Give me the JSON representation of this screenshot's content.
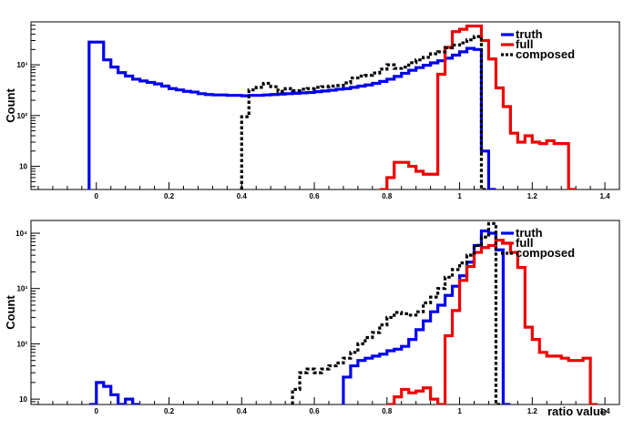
{
  "chart_data": [
    {
      "type": "step-histogram",
      "ylabel": "Count",
      "xlabel": "",
      "xlim": [
        -0.18,
        1.44
      ],
      "ylim": [
        3.5,
        7000
      ],
      "log_y": true,
      "x_ticks": [
        "0",
        "0.2",
        "0.4",
        "0.6",
        "0.8",
        "1",
        "1.2",
        "1.4"
      ],
      "y_ticks": [
        {
          "value": 10,
          "label": "10"
        },
        {
          "value": 100,
          "label": "10²"
        },
        {
          "value": 1000,
          "label": "10³"
        }
      ],
      "legend": {
        "position": "top-right"
      },
      "bin_width": 0.02,
      "series": [
        {
          "name": "truth",
          "color": "#0000ee",
          "style": "solid",
          "start": -0.02,
          "values": [
            2800,
            2800,
            1250,
            900,
            700,
            600,
            520,
            480,
            450,
            420,
            380,
            340,
            320,
            300,
            290,
            270,
            260,
            255,
            255,
            250,
            250,
            245,
            250,
            250,
            255,
            260,
            265,
            270,
            275,
            280,
            285,
            295,
            305,
            315,
            330,
            340,
            360,
            380,
            400,
            430,
            470,
            520,
            590,
            680,
            780,
            880,
            980,
            1090,
            1200,
            1350,
            1550,
            1800,
            2100,
            2000,
            20,
            2.5
          ]
        },
        {
          "name": "full",
          "color": "#ee0000",
          "style": "solid",
          "start": 0.78,
          "values": [
            2.5,
            6,
            12,
            12,
            10,
            8,
            7,
            7,
            650,
            2200,
            4500,
            5000,
            5800,
            5800,
            3000,
            1300,
            350,
            150,
            45,
            30,
            40,
            30,
            28,
            32,
            28,
            28,
            2.5
          ]
        },
        {
          "name": "composed",
          "color": "#000000",
          "style": "dashed",
          "start": 0.4,
          "values": [
            95,
            320,
            360,
            430,
            370,
            300,
            340,
            310,
            330,
            340,
            360,
            370,
            380,
            390,
            440,
            550,
            600,
            620,
            690,
            820,
            1000,
            850,
            900,
            1100,
            1250,
            1400,
            1650,
            1800,
            2150,
            2450,
            2700,
            3100,
            3600,
            2.5
          ]
        }
      ]
    },
    {
      "type": "step-histogram",
      "ylabel": "Count",
      "xlabel": "ratio value",
      "xlim": [
        -0.18,
        1.44
      ],
      "ylim": [
        8,
        17000
      ],
      "log_y": true,
      "x_ticks": [
        "0",
        "0.2",
        "0.4",
        "0.6",
        "0.8",
        "1",
        "1.2",
        "1.4"
      ],
      "y_ticks": [
        {
          "value": 10,
          "label": "10"
        },
        {
          "value": 100,
          "label": "10²"
        },
        {
          "value": 1000,
          "label": "10³"
        },
        {
          "value": 10000,
          "label": "10⁴"
        }
      ],
      "legend": {
        "position": "top-right"
      },
      "bin_width": 0.02,
      "series": [
        {
          "name": "truth",
          "color": "#0000ee",
          "style": "solid",
          "start": -0.02,
          "values": [
            5,
            20,
            17,
            12,
            5,
            10,
            5
          ]
        },
        {
          "name": "truth",
          "color": "#0000ee",
          "style": "solid",
          "start": 0.68,
          "values": [
            25,
            40,
            50,
            55,
            60,
            65,
            75,
            80,
            90,
            120,
            180,
            260,
            380,
            500,
            750,
            1100,
            1700,
            3000,
            6000,
            11000,
            10000,
            5000,
            5
          ]
        },
        {
          "name": "full",
          "color": "#ee0000",
          "style": "solid",
          "start": 0.8,
          "values": [
            5,
            11,
            15,
            13,
            14,
            16,
            10,
            5,
            140,
            400,
            1400,
            2500,
            4500,
            5500,
            6000,
            7500,
            6600,
            4500,
            2400,
            200,
            120,
            70,
            60,
            60,
            55,
            50,
            50,
            55,
            5
          ]
        },
        {
          "name": "composed",
          "color": "#000000",
          "style": "dashed",
          "start": 0.54,
          "values": [
            15,
            30,
            35,
            30,
            35,
            40,
            45,
            55,
            70,
            100,
            130,
            160,
            220,
            300,
            370,
            350,
            330,
            380,
            550,
            700,
            1000,
            1600,
            2200,
            2900,
            4000,
            6000,
            8500,
            15000,
            8
          ]
        }
      ]
    }
  ]
}
